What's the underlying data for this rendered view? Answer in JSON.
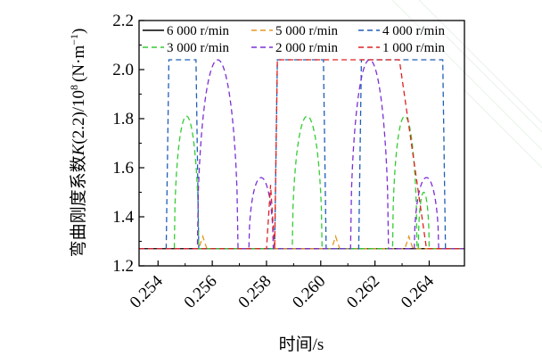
{
  "chart_data": {
    "type": "line",
    "xlabel": "时间/s",
    "ylabel_prefix": "弯曲刚度系数",
    "ylabel_var": "K",
    "ylabel_suffix": "(2.2)/10",
    "ylabel_exp": "8",
    "ylabel_unit": "(N·m",
    "ylabel_unit_exp": "−1",
    "ylabel_unit_close": ")",
    "xlim": [
      0.2533,
      0.2653
    ],
    "ylim": [
      1.2,
      2.2
    ],
    "x_ticks": [
      0.254,
      0.256,
      0.258,
      0.26,
      0.262,
      0.264
    ],
    "x_tick_labels": [
      "0.254",
      "0.256",
      "0.258",
      "0.260",
      "0.262",
      "0.264"
    ],
    "y_ticks": [
      1.2,
      1.4,
      1.6,
      1.8,
      2.0,
      2.2
    ],
    "y_tick_labels": [
      "1.2",
      "1.4",
      "1.6",
      "1.8",
      "2.0",
      "2.2"
    ],
    "legend_placement": "top, inside, 2 rows x 3 columns",
    "series": [
      {
        "name": "6 000 r/min",
        "color": "#000000",
        "dash": "solid",
        "points": [
          [
            0.2533,
            1.27
          ],
          [
            0.2653,
            1.27
          ]
        ]
      },
      {
        "name": "5 000 r/min",
        "color": "#e69520",
        "dash": "dash",
        "points": [
          [
            0.2533,
            1.27
          ],
          [
            0.2555,
            1.27
          ],
          [
            0.25565,
            1.32
          ],
          [
            0.2558,
            1.27
          ],
          [
            0.2604,
            1.27
          ],
          [
            0.26055,
            1.32
          ],
          [
            0.2607,
            1.27
          ],
          [
            0.2631,
            1.27
          ],
          [
            0.26325,
            1.32
          ],
          [
            0.2634,
            1.27
          ],
          [
            0.2653,
            1.27
          ]
        ]
      },
      {
        "name": "4 000 r/min",
        "color": "#1f5fb5",
        "dash": "dash",
        "points": [
          [
            0.2533,
            1.27
          ],
          [
            0.2543,
            1.27
          ],
          [
            0.2544,
            2.04
          ],
          [
            0.2554,
            2.04
          ],
          [
            0.2555,
            1.27
          ],
          [
            0.2583,
            1.27
          ],
          [
            0.2584,
            2.04
          ],
          [
            0.2601,
            2.04
          ],
          [
            0.2602,
            1.27
          ],
          [
            0.2614,
            1.27
          ],
          [
            0.2615,
            2.04
          ],
          [
            0.2645,
            2.04
          ],
          [
            0.2646,
            1.27
          ],
          [
            0.2653,
            1.27
          ]
        ]
      },
      {
        "name": "3 000 r/min",
        "color": "#33cc33",
        "dash": "dash",
        "peaks": [
          [
            0.25505,
            1.81,
            0.00045
          ],
          [
            0.2595,
            1.81,
            0.00055
          ],
          [
            0.2631,
            1.81,
            0.00045
          ],
          [
            0.2638,
            1.5,
            0.0002
          ]
        ]
      },
      {
        "name": "2 000 r/min",
        "color": "#7b2fd6",
        "dash": "dash",
        "peaks": [
          [
            0.2562,
            2.04,
            0.00075
          ],
          [
            0.2578,
            1.56,
            0.00045
          ],
          [
            0.2618,
            2.04,
            0.0007
          ],
          [
            0.2639,
            1.56,
            0.00045
          ]
        ]
      },
      {
        "name": "1 000 r/min",
        "color": "#e02020",
        "dash": "dash",
        "points": [
          [
            0.2533,
            1.27
          ],
          [
            0.258,
            1.27
          ],
          [
            0.25815,
            1.53
          ],
          [
            0.2583,
            1.27
          ],
          [
            0.2584,
            2.04
          ],
          [
            0.2629,
            2.04
          ],
          [
            0.2639,
            1.27
          ],
          [
            0.2653,
            1.27
          ]
        ]
      }
    ]
  }
}
